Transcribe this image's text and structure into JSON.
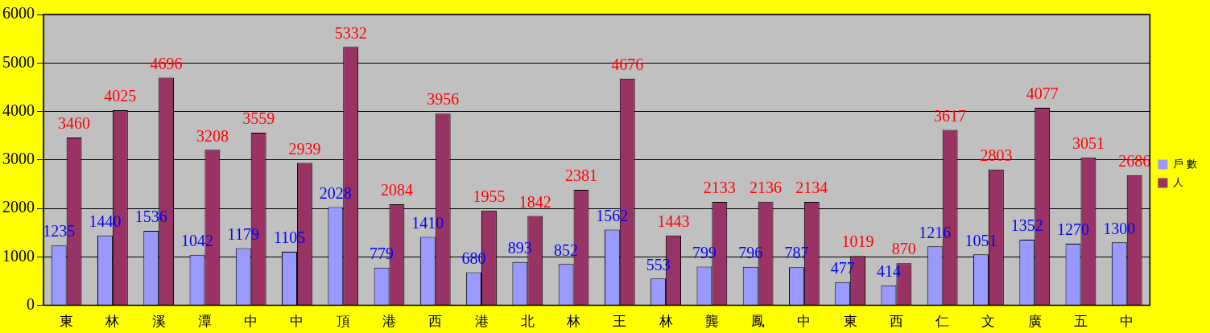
{
  "chart_data": {
    "type": "bar",
    "categories": [
      "東",
      "林",
      "溪",
      "潭",
      "中",
      "中",
      "頂",
      "港",
      "西",
      "港",
      "北",
      "林",
      "王",
      "林",
      "龔",
      "鳳",
      "中",
      "東",
      "西",
      "仁",
      "文",
      "廣",
      "五",
      "中"
    ],
    "series": [
      {
        "name": "戶 數",
        "color": "#9999ff",
        "values": [
          1235,
          1440,
          1536,
          1042,
          1179,
          1105,
          2028,
          779,
          1410,
          680,
          893,
          852,
          1562,
          553,
          799,
          796,
          787,
          477,
          414,
          1216,
          1051,
          1352,
          1270,
          1300
        ]
      },
      {
        "name": "人",
        "color": "#993366",
        "values": [
          3460,
          4025,
          4696,
          3208,
          3559,
          2939,
          5332,
          2084,
          3956,
          1955,
          1842,
          2381,
          4676,
          1443,
          2133,
          2136,
          2134,
          1019,
          870,
          3617,
          2803,
          4077,
          3051,
          2686
        ]
      }
    ],
    "ylim": [
      0,
      6000
    ],
    "yticks": [
      0,
      1000,
      2000,
      3000,
      4000,
      5000,
      6000
    ],
    "grid": "y",
    "legend": "right",
    "data_labels": true
  }
}
